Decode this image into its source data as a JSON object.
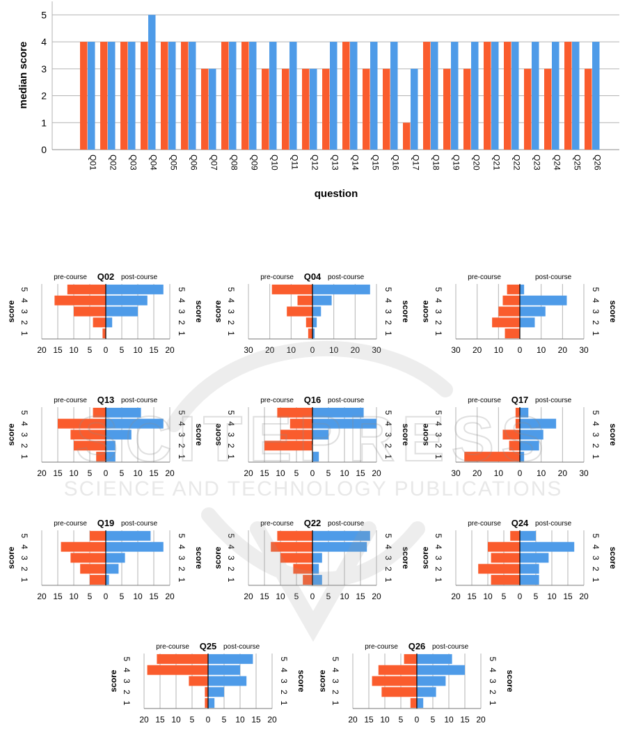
{
  "colors": {
    "pre": "#fa5c2d",
    "post": "#4e9be8",
    "grid": "#b3b3b3",
    "axis": "#000000"
  },
  "watermark": {
    "text_top": "SCITEPRESS",
    "text_bottom": "SCIENCE AND TECHNOLOGY PUBLICATIONS"
  },
  "chart_data": [
    {
      "type": "bar",
      "xlabel": "question",
      "ylabel": "median score",
      "ylim": [
        0,
        5.5
      ],
      "yticks": [
        0,
        1,
        2,
        3,
        4,
        5
      ],
      "grid": true,
      "categories": [
        "Q01",
        "Q02",
        "Q03",
        "Q04",
        "Q05",
        "Q06",
        "Q07",
        "Q08",
        "Q09",
        "Q10",
        "Q11",
        "Q12",
        "Q13",
        "Q14",
        "Q15",
        "Q16",
        "Q17",
        "Q18",
        "Q19",
        "Q20",
        "Q21",
        "Q22",
        "Q23",
        "Q24",
        "Q25",
        "Q26"
      ],
      "series": [
        {
          "values": [
            4,
            4,
            4,
            4,
            4,
            4,
            3,
            4,
            4,
            3,
            3,
            3,
            3,
            4,
            3,
            3,
            1,
            4,
            3,
            3,
            4,
            4,
            3,
            3,
            4,
            3
          ]
        },
        {
          "values": [
            4,
            4,
            4,
            5,
            4,
            4,
            3,
            4,
            4,
            4,
            4,
            3,
            4,
            4,
            4,
            4,
            3,
            4,
            4,
            4,
            4,
            4,
            4,
            4,
            4,
            4
          ]
        }
      ]
    },
    {
      "type": "bar",
      "title": "Q02",
      "left_label": "pre-course",
      "right_label": "post-course",
      "ylabel": "score",
      "scores": [
        "5",
        "4",
        "3",
        "2",
        "1"
      ],
      "xmax": 20,
      "xticks": [
        20,
        15,
        10,
        5,
        0,
        5,
        10,
        15,
        20
      ],
      "pre": [
        12,
        16,
        10,
        4,
        1
      ],
      "post": [
        18,
        13,
        10,
        2,
        0
      ]
    },
    {
      "type": "bar",
      "title": "Q04",
      "left_label": "pre-course",
      "right_label": "post-course",
      "ylabel": "score",
      "scores": [
        "5",
        "4",
        "3",
        "2",
        "1"
      ],
      "xmax": 30,
      "xticks": [
        30,
        20,
        10,
        0,
        10,
        20,
        30
      ],
      "pre": [
        19,
        7,
        12,
        3,
        2
      ],
      "post": [
        27,
        9,
        4,
        2,
        1
      ]
    },
    {
      "type": "bar",
      "title": "",
      "left_label": "pre-course",
      "right_label": "post-course",
      "ylabel": "score",
      "scores": [
        "5",
        "4",
        "3",
        "2",
        "1"
      ],
      "xmax": 30,
      "xticks": [
        30,
        20,
        10,
        0,
        10,
        20,
        30
      ],
      "pre": [
        6,
        8,
        10,
        13,
        7
      ],
      "post": [
        2,
        22,
        12,
        7,
        0
      ]
    },
    {
      "type": "bar",
      "title": "Q13",
      "left_label": "pre-course",
      "right_label": "post-course",
      "ylabel": "score",
      "scores": [
        "5",
        "4",
        "3",
        "2",
        "1"
      ],
      "xmax": 20,
      "xticks": [
        20,
        15,
        10,
        5,
        0,
        5,
        10,
        15,
        20
      ],
      "pre": [
        4,
        15,
        11,
        10,
        3
      ],
      "post": [
        11,
        18,
        8,
        3,
        3
      ]
    },
    {
      "type": "bar",
      "title": "Q16",
      "left_label": "pre-course",
      "right_label": "post-course",
      "ylabel": "score",
      "scores": [
        "5",
        "4",
        "3",
        "2",
        "1"
      ],
      "xmax": 20,
      "xticks": [
        20,
        15,
        10,
        5,
        0,
        5,
        10,
        15,
        20
      ],
      "pre": [
        11,
        7,
        10,
        15,
        0
      ],
      "post": [
        16,
        20,
        5,
        0,
        2
      ]
    },
    {
      "type": "bar",
      "title": "Q17",
      "left_label": "pre-course",
      "right_label": "post-course",
      "ylabel": "score",
      "scores": [
        "5",
        "4",
        "3",
        "2",
        "1"
      ],
      "xmax": 30,
      "xticks": [
        30,
        20,
        10,
        0,
        10,
        20,
        30
      ],
      "pre": [
        2,
        2,
        8,
        5,
        26
      ],
      "post": [
        4,
        17,
        11,
        9,
        2
      ]
    },
    {
      "type": "bar",
      "title": "Q19",
      "left_label": "pre-course",
      "right_label": "post-course",
      "ylabel": "score",
      "scores": [
        "5",
        "4",
        "3",
        "2",
        "1"
      ],
      "xmax": 20,
      "xticks": [
        20,
        15,
        10,
        5,
        0,
        5,
        10,
        15,
        20
      ],
      "pre": [
        5,
        14,
        11,
        8,
        5
      ],
      "post": [
        14,
        18,
        6,
        4,
        1
      ]
    },
    {
      "type": "bar",
      "title": "Q22",
      "left_label": "pre-course",
      "right_label": "post-course",
      "ylabel": "score",
      "scores": [
        "5",
        "4",
        "3",
        "2",
        "1"
      ],
      "xmax": 20,
      "xticks": [
        20,
        15,
        10,
        5,
        0,
        5,
        10,
        15,
        20
      ],
      "pre": [
        11,
        13,
        10,
        6,
        3
      ],
      "post": [
        18,
        17,
        3,
        2,
        3
      ]
    },
    {
      "type": "bar",
      "title": "Q24",
      "left_label": "pre-course",
      "right_label": "post-course",
      "ylabel": "score",
      "scores": [
        "5",
        "4",
        "3",
        "2",
        "1"
      ],
      "xmax": 20,
      "xticks": [
        20,
        15,
        10,
        5,
        0,
        5,
        10,
        15,
        20
      ],
      "pre": [
        3,
        10,
        9,
        13,
        9
      ],
      "post": [
        5,
        17,
        9,
        6,
        6
      ]
    },
    {
      "type": "bar",
      "title": "Q25",
      "left_label": "pre-course",
      "right_label": "post-course",
      "ylabel": "score",
      "scores": [
        "5",
        "4",
        "3",
        "2",
        "1"
      ],
      "xmax": 20,
      "xticks": [
        20,
        15,
        10,
        5,
        0,
        5,
        10,
        15,
        20
      ],
      "pre": [
        16,
        19,
        6,
        1,
        1
      ],
      "post": [
        14,
        10,
        12,
        5,
        2
      ]
    },
    {
      "type": "bar",
      "title": "Q26",
      "left_label": "pre-course",
      "right_label": "post-course",
      "ylabel": "score",
      "scores": [
        "5",
        "4",
        "3",
        "2",
        "1"
      ],
      "xmax": 20,
      "xticks": [
        20,
        15,
        10,
        5,
        0,
        5,
        10,
        15,
        20
      ],
      "pre": [
        4,
        12,
        14,
        11,
        2
      ],
      "post": [
        11,
        15,
        9,
        6,
        2
      ]
    }
  ]
}
